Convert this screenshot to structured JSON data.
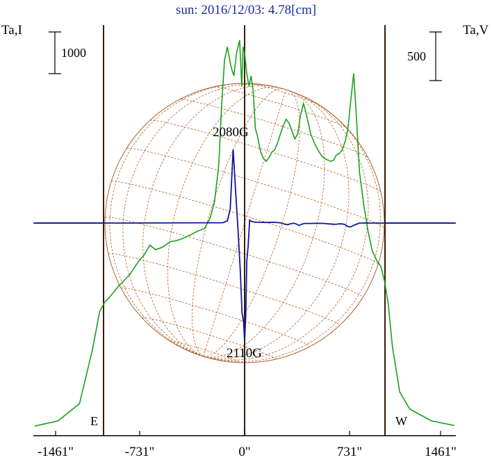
{
  "title": "sun: 2016/12/03: 4.78[cm]",
  "left_axis_label": "Ta,I",
  "right_axis_label": "Ta,V",
  "left_scale_label": "1000",
  "right_scale_label": "500",
  "annotation_top": "2080G",
  "annotation_bottom": "2110G",
  "limb_east": "E",
  "limb_west": "W",
  "colors": {
    "stokes_i": "#1aa01a",
    "stokes_v": "#101890",
    "disk_grid": "#b0602a",
    "frame": "#3a1a10",
    "title": "#1a2aa0"
  },
  "chart_data": {
    "type": "line",
    "x_unit": "arcsec",
    "xlim": [
      -1461,
      1461
    ],
    "x_ticks": [
      -1461,
      -731,
      0,
      731,
      1461
    ],
    "x_tick_labels": [
      "-1461\"",
      "-731\"",
      "0\"",
      "731\"",
      "1461\""
    ],
    "limb_markers": [
      -975,
      975
    ],
    "series": [
      {
        "label": "Stokes I (Ta,I)",
        "x": [
          -1461,
          -1300,
          -1150,
          -1060,
          -1010,
          -975,
          -940,
          -880,
          -800,
          -740,
          -700,
          -660,
          -620,
          -570,
          -520,
          -470,
          -420,
          -380,
          -330,
          -280,
          -240,
          -210,
          -180,
          -160,
          -140,
          -120,
          -95,
          -75,
          -55,
          -35,
          -20,
          -10,
          0,
          15,
          30,
          45,
          60,
          75,
          90,
          110,
          130,
          150,
          170,
          190,
          210,
          230,
          250,
          270,
          290,
          310,
          330,
          350,
          370,
          390,
          410,
          430,
          460,
          490,
          520,
          540,
          560,
          580,
          600,
          620,
          640,
          660,
          680,
          700,
          720,
          740,
          760,
          780,
          800,
          830,
          860,
          890,
          920,
          950,
          975,
          1000,
          1030,
          1080,
          1150,
          1300,
          1461
        ],
        "y": [
          20,
          60,
          190,
          600,
          890,
          960,
          1000,
          1080,
          1170,
          1270,
          1320,
          1395,
          1360,
          1380,
          1420,
          1430,
          1450,
          1470,
          1500,
          1520,
          1600,
          1720,
          2000,
          2450,
          2800,
          2900,
          2750,
          2680,
          2860,
          2950,
          2600,
          2900,
          2850,
          2700,
          2600,
          2680,
          2560,
          2280,
          2220,
          2110,
          2055,
          2030,
          2060,
          2100,
          2120,
          2170,
          2240,
          2305,
          2350,
          2320,
          2260,
          2200,
          2240,
          2385,
          2470,
          2390,
          2240,
          2160,
          2100,
          2070,
          2050,
          2040,
          2030,
          2040,
          2080,
          2090,
          2120,
          2180,
          2280,
          2500,
          2700,
          2350,
          1950,
          1700,
          1500,
          1350,
          1280,
          1230,
          1120,
          950,
          620,
          280,
          150,
          60,
          25
        ]
      },
      {
        "label": "Stokes V (Ta,V)",
        "x": [
          -1461,
          -900,
          -300,
          -230,
          -180,
          -150,
          -120,
          -100,
          -80,
          -60,
          -45,
          -30,
          -18,
          -8,
          0,
          8,
          15,
          25,
          35,
          50,
          70,
          100,
          150,
          200,
          250,
          280,
          300,
          320,
          340,
          360,
          380,
          400,
          420,
          450,
          500,
          550,
          580,
          600,
          620,
          640,
          660,
          680,
          700,
          720,
          740,
          760,
          800,
          900,
          1000,
          1461
        ],
        "y": [
          0,
          0,
          4,
          4,
          4,
          5,
          30,
          190,
          1000,
          350,
          -120,
          -650,
          -1220,
          -1320,
          -1600,
          -1250,
          -520,
          -300,
          40,
          20,
          13,
          10,
          8,
          10,
          4,
          -15,
          -22,
          -10,
          -3,
          -12,
          -33,
          -14,
          -5,
          -6,
          -4,
          -5,
          -10,
          -12,
          -17,
          -15,
          -10,
          -11,
          -22,
          -49,
          -52,
          -30,
          0,
          0,
          0,
          0
        ]
      }
    ],
    "y_scale_bar_left": 1000,
    "y_scale_bar_right": 500,
    "sun_center_arcsec": [
      0,
      0
    ],
    "sun_radius_arcsec": 975,
    "grid": "heliographic coordinate grid overlay"
  }
}
